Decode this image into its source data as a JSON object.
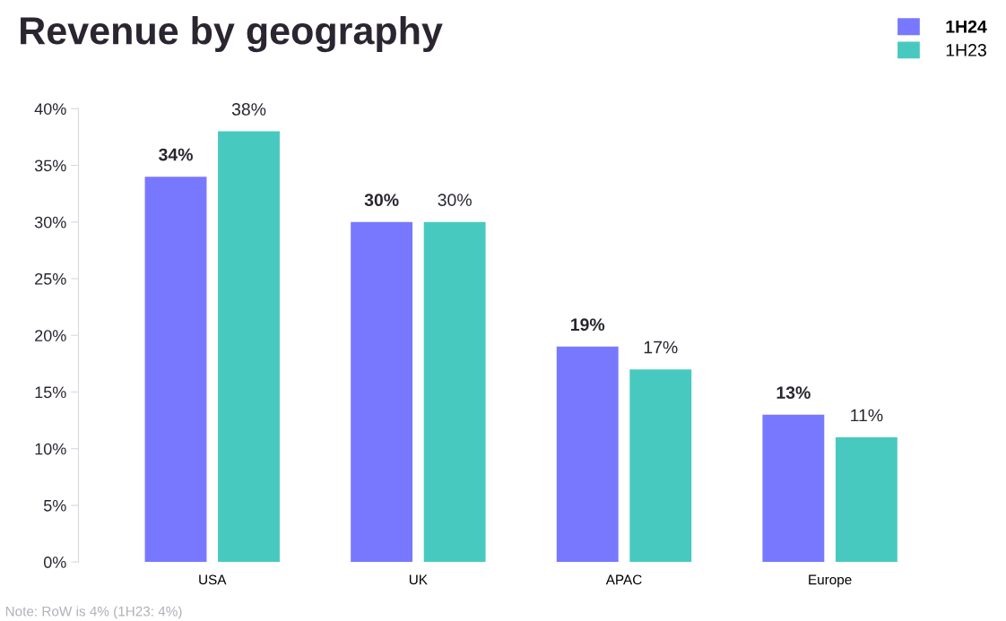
{
  "chart_data": {
    "type": "bar",
    "title": "Revenue by geography",
    "categories": [
      "USA",
      "UK",
      "APAC",
      "Europe"
    ],
    "series": [
      {
        "name": "1H24",
        "color": "#7878ff",
        "values": [
          34,
          30,
          19,
          13
        ],
        "value_labels": [
          "34%",
          "30%",
          "19%",
          "13%"
        ]
      },
      {
        "name": "1H23",
        "color": "#48c9c0",
        "values": [
          38,
          30,
          17,
          11
        ],
        "value_labels": [
          "38%",
          "30%",
          "17%",
          "11%"
        ]
      }
    ],
    "ylim": [
      0,
      40
    ],
    "yticks": [
      {
        "value": 0,
        "label": "0%"
      },
      {
        "value": 5,
        "label": "5%"
      },
      {
        "value": 10,
        "label": "10%"
      },
      {
        "value": 15,
        "label": "15%"
      },
      {
        "value": 20,
        "label": "20%"
      },
      {
        "value": 25,
        "label": "25%"
      },
      {
        "value": 30,
        "label": "30%"
      },
      {
        "value": 35,
        "label": "35%"
      },
      {
        "value": 40,
        "label": "40%"
      }
    ],
    "grid": false,
    "legend": "top right",
    "annotations": [
      "Note: RoW is 4% (1H23: 4%)"
    ]
  }
}
